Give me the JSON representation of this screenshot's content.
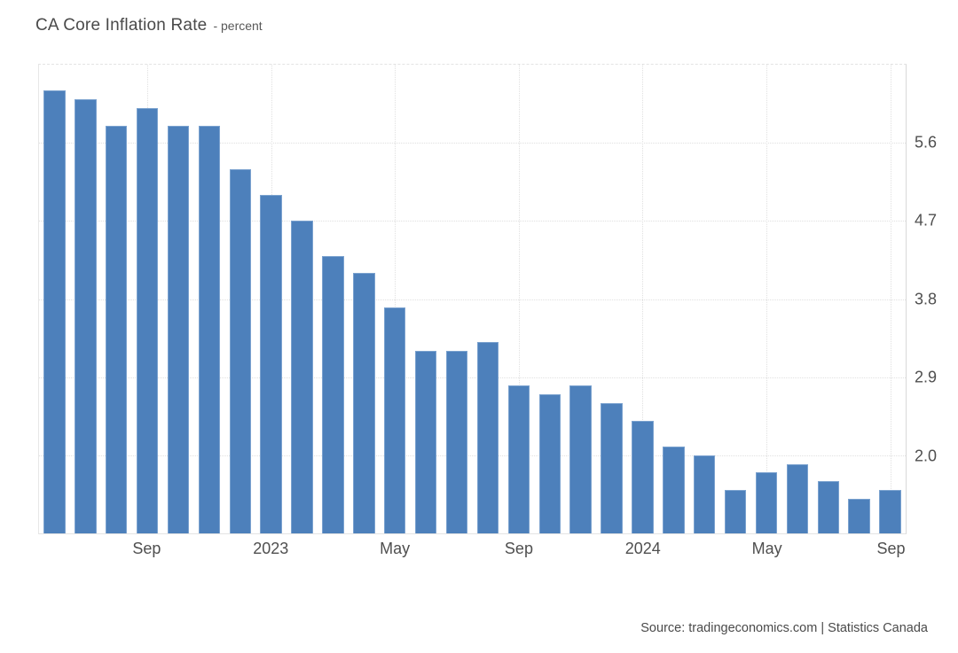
{
  "header": {
    "title": "CA Core Inflation Rate",
    "subtitle": "- percent"
  },
  "footer": {
    "source": "Source: tradingeconomics.com | Statistics Canada"
  },
  "chart_data": {
    "type": "bar",
    "title": "CA Core Inflation Rate",
    "subtitle": "percent",
    "categories": [
      "Jun 2022",
      "Jul 2022",
      "Aug 2022",
      "Sep 2022",
      "Oct 2022",
      "Nov 2022",
      "Dec 2022",
      "Jan 2023",
      "Feb 2023",
      "Mar 2023",
      "Apr 2023",
      "May 2023",
      "Jun 2023",
      "Jul 2023",
      "Aug 2023",
      "Sep 2023",
      "Oct 2023",
      "Nov 2023",
      "Dec 2023",
      "Jan 2024",
      "Feb 2024",
      "Mar 2024",
      "Apr 2024",
      "May 2024",
      "Jun 2024",
      "Jul 2024",
      "Aug 2024",
      "Sep 2024"
    ],
    "values": [
      6.2,
      6.1,
      5.8,
      6.0,
      5.8,
      5.8,
      5.3,
      5.0,
      4.7,
      4.3,
      4.1,
      3.7,
      3.2,
      3.2,
      3.3,
      2.8,
      2.7,
      2.8,
      2.6,
      2.4,
      2.1,
      2.0,
      1.6,
      1.8,
      1.9,
      1.7,
      1.5,
      1.6
    ],
    "xlabel": "",
    "ylabel": "percent",
    "ylim": [
      1.1,
      6.5
    ],
    "y_ticks": [
      2.0,
      2.9,
      3.8,
      4.7,
      5.6
    ],
    "y_tick_labels": [
      "2.0",
      "2.9",
      "3.8",
      "4.7",
      "5.6"
    ],
    "x_ticks": [
      {
        "index": 3,
        "label": "Sep"
      },
      {
        "index": 7,
        "label": "2023"
      },
      {
        "index": 11,
        "label": "May"
      },
      {
        "index": 15,
        "label": "Sep"
      },
      {
        "index": 19,
        "label": "2024"
      },
      {
        "index": 23,
        "label": "May"
      },
      {
        "index": 27,
        "label": "Sep"
      }
    ],
    "grid": "dotted",
    "legend": "none",
    "bar_color": "#4d80bb",
    "bar_edge_color": "#7ba2cf"
  }
}
